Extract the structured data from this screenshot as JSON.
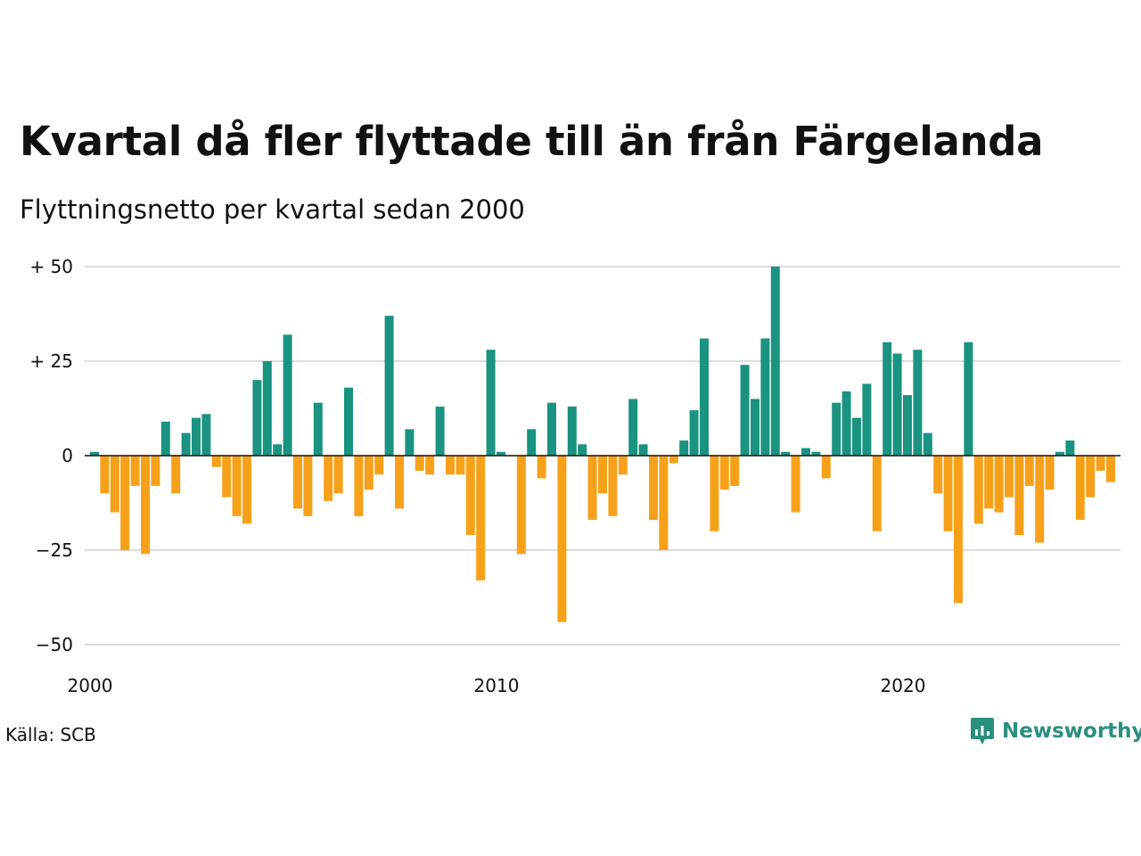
{
  "title": "Kvartal då fler flyttade till än från Färgelanda",
  "subtitle": "Flyttningsnetto per kvartal sedan 2000",
  "source": "Källa: SCB",
  "brand": "Newsworthy",
  "colors": {
    "positive": "#1a9381",
    "negative": "#f7a11a",
    "grid": "#dddddd",
    "axis": "#111111",
    "brand": "#2a8f7f"
  },
  "icons": {
    "brand_logo": "bar-chart-speech-bubble-icon"
  },
  "chart_data": {
    "type": "bar",
    "ylim": [
      -50,
      50
    ],
    "y_ticks": [
      {
        "value": 50,
        "label": "+ 50"
      },
      {
        "value": 25,
        "label": "+ 25"
      },
      {
        "value": 0,
        "label": "0"
      },
      {
        "value": -25,
        "label": "−25"
      },
      {
        "value": -50,
        "label": "−50"
      }
    ],
    "x_ticks": [
      {
        "value": 2000,
        "label": "2000"
      },
      {
        "value": 2010,
        "label": "2010"
      },
      {
        "value": 2020,
        "label": "2020"
      }
    ],
    "x_start_year": 2000,
    "periods_per_year": 4,
    "grid": true,
    "legend": "none",
    "values": [
      1,
      -10,
      -15,
      -25,
      -8,
      -26,
      -8,
      9,
      -10,
      6,
      10,
      11,
      -3,
      -11,
      -16,
      -18,
      20,
      25,
      3,
      32,
      -14,
      -16,
      14,
      -12,
      -10,
      18,
      -16,
      -9,
      -5,
      37,
      -14,
      7,
      -4,
      -5,
      13,
      -5,
      -5,
      -21,
      -33,
      28,
      1,
      0,
      -26,
      7,
      -6,
      14,
      -44,
      13,
      3,
      -17,
      -10,
      -16,
      -5,
      15,
      3,
      -17,
      -25,
      -2,
      4,
      12,
      31,
      -20,
      -9,
      -8,
      24,
      15,
      31,
      50,
      1,
      -15,
      2,
      1,
      -6,
      14,
      17,
      10,
      19,
      -20,
      30,
      27,
      16,
      28,
      6,
      -10,
      -20,
      -39,
      30,
      -18,
      -14,
      -15,
      -11,
      -21,
      -8,
      -23,
      -9,
      1,
      4,
      -17,
      -11,
      -4,
      -7
    ]
  }
}
